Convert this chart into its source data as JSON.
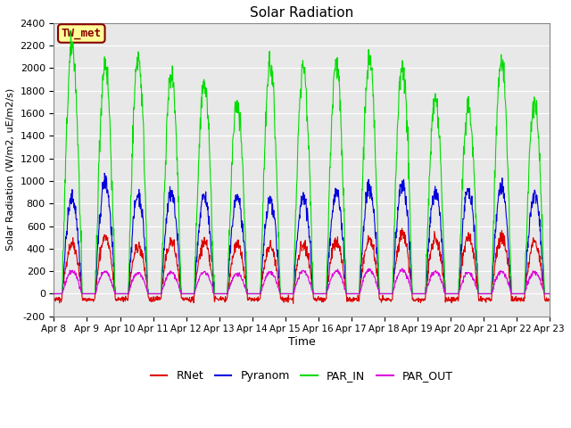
{
  "title": "Solar Radiation",
  "ylabel": "Solar Radiation (W/m2, uE/m2/s)",
  "xlabel": "Time",
  "ylim": [
    -200,
    2400
  ],
  "yticks": [
    -200,
    0,
    200,
    400,
    600,
    800,
    1000,
    1200,
    1400,
    1600,
    1800,
    2000,
    2200,
    2400
  ],
  "date_labels": [
    "Apr 8",
    "Apr 9",
    "Apr 10",
    "Apr 11",
    "Apr 12",
    "Apr 13",
    "Apr 14",
    "Apr 15",
    "Apr 16",
    "Apr 17",
    "Apr 18",
    "Apr 19",
    "Apr 20",
    "Apr 21",
    "Apr 22",
    "Apr 23"
  ],
  "n_days": 15,
  "colors": {
    "RNet": "#dd0000",
    "Pyranom": "#0000dd",
    "PAR_IN": "#00dd00",
    "PAR_OUT": "#dd00dd"
  },
  "annotation_text": "TW_met",
  "annotation_color": "#880000",
  "annotation_bg": "#ffff99",
  "plot_bg": "#e8e8e8",
  "background_color": "#ffffff",
  "grid_color": "#ffffff"
}
